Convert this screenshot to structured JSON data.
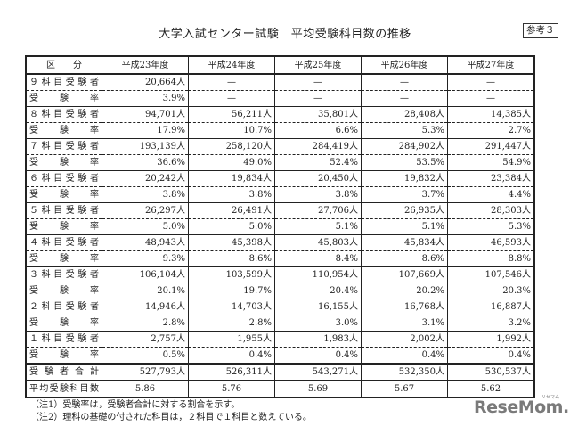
{
  "document": {
    "title": "大学入試センター試験　平均受験科目数の推移",
    "reference_label": "参考３"
  },
  "table": {
    "headers": [
      "区　　分",
      "平成23年度",
      "平成24年度",
      "平成25年度",
      "平成26年度",
      "平成27年度"
    ],
    "rows": [
      {
        "type": "count",
        "label": "９科目受験者",
        "values": [
          "20,664人",
          "—",
          "—",
          "—",
          "—"
        ]
      },
      {
        "type": "rate",
        "label": "受験率",
        "values": [
          "3.9%",
          "—",
          "—",
          "—",
          "—"
        ]
      },
      {
        "type": "count",
        "label": "８科目受験者",
        "values": [
          "94,701人",
          "56,211人",
          "35,801人",
          "28,408人",
          "14,385人"
        ]
      },
      {
        "type": "rate",
        "label": "受験率",
        "values": [
          "17.9%",
          "10.7%",
          "6.6%",
          "5.3%",
          "2.7%"
        ]
      },
      {
        "type": "count",
        "label": "７科目受験者",
        "values": [
          "193,139人",
          "258,120人",
          "284,419人",
          "284,902人",
          "291,447人"
        ]
      },
      {
        "type": "rate",
        "label": "受験率",
        "values": [
          "36.6%",
          "49.0%",
          "52.4%",
          "53.5%",
          "54.9%"
        ]
      },
      {
        "type": "count",
        "label": "６科目受験者",
        "values": [
          "20,242人",
          "19,834人",
          "20,450人",
          "19,832人",
          "23,384人"
        ]
      },
      {
        "type": "rate",
        "label": "受験率",
        "values": [
          "3.8%",
          "3.8%",
          "3.8%",
          "3.7%",
          "4.4%"
        ]
      },
      {
        "type": "count",
        "label": "５科目受験者",
        "values": [
          "26,297人",
          "26,491人",
          "27,706人",
          "26,935人",
          "28,303人"
        ]
      },
      {
        "type": "rate",
        "label": "受験率",
        "values": [
          "5.0%",
          "5.0%",
          "5.1%",
          "5.1%",
          "5.3%"
        ]
      },
      {
        "type": "count",
        "label": "４科目受験者",
        "values": [
          "48,943人",
          "45,398人",
          "45,803人",
          "45,834人",
          "46,593人"
        ]
      },
      {
        "type": "rate",
        "label": "受験率",
        "values": [
          "9.3%",
          "8.6%",
          "8.4%",
          "8.6%",
          "8.8%"
        ]
      },
      {
        "type": "count",
        "label": "３科目受験者",
        "values": [
          "106,104人",
          "103,599人",
          "110,954人",
          "107,669人",
          "107,546人"
        ]
      },
      {
        "type": "rate",
        "label": "受験率",
        "values": [
          "20.1%",
          "19.7%",
          "20.4%",
          "20.2%",
          "20.3%"
        ]
      },
      {
        "type": "count",
        "label": "２科目受験者",
        "values": [
          "14,946人",
          "14,703人",
          "16,155人",
          "16,768人",
          "16,887人"
        ]
      },
      {
        "type": "rate",
        "label": "受験率",
        "values": [
          "2.8%",
          "2.8%",
          "3.0%",
          "3.1%",
          "3.2%"
        ]
      },
      {
        "type": "count",
        "label": "１科目受験者",
        "values": [
          "2,757人",
          "1,955人",
          "1,983人",
          "2,002人",
          "1,992人"
        ]
      },
      {
        "type": "rate",
        "label": "受験率",
        "values": [
          "0.5%",
          "0.4%",
          "0.4%",
          "0.4%",
          "0.4%"
        ]
      },
      {
        "type": "total",
        "label": "受験者合計",
        "values": [
          "527,793人",
          "526,311人",
          "543,271人",
          "532,350人",
          "530,537人"
        ]
      },
      {
        "type": "avg",
        "label": "平均受験科目数",
        "values": [
          "5.86",
          "5.76",
          "5.69",
          "5.67",
          "5.62"
        ]
      }
    ]
  },
  "notes": [
    "（注1）受験率は，受験者合計に対する割合を示す。",
    "（注2）理科の基礎の付された科目は，２科目で１科目と数えている。"
  ],
  "watermark": {
    "text": "ReseMom.",
    "kana": "リセマム",
    "color": "#7a7a7a"
  }
}
